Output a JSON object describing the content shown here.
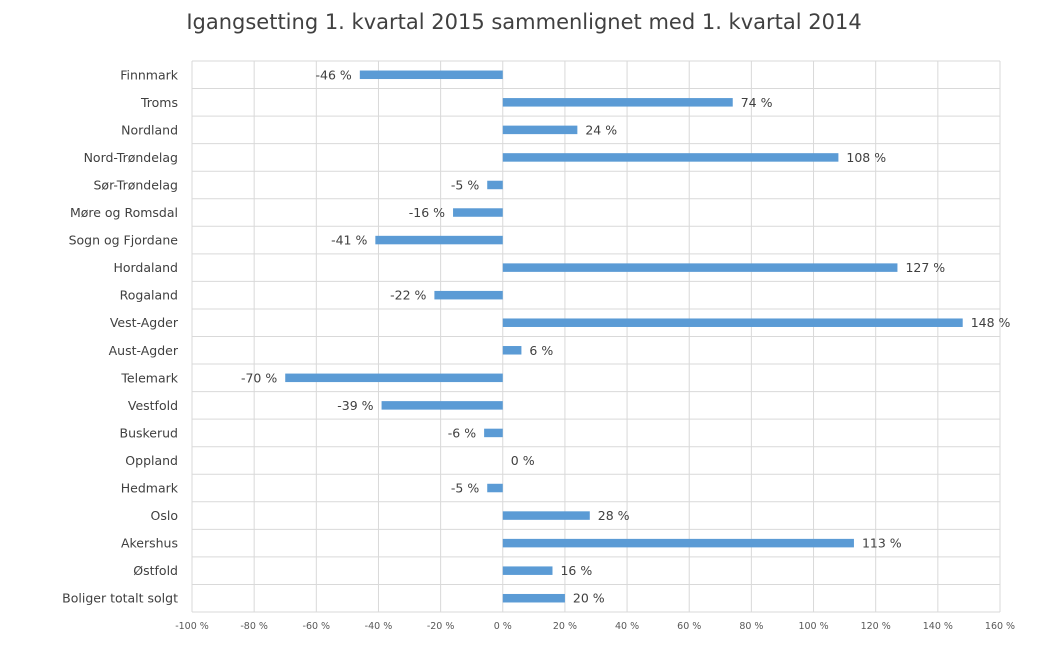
{
  "chart_data": {
    "type": "bar",
    "orientation": "horizontal",
    "title": "Igangsetting 1. kvartal 2015 sammenlignet med 1. kvartal 2014",
    "categories": [
      "Finnmark",
      "Troms",
      "Nordland",
      "Nord-Trøndelag",
      "Sør-Trøndelag",
      "Møre og Romsdal",
      "Sogn og Fjordane",
      "Hordaland",
      "Rogaland",
      "Vest-Agder",
      "Aust-Agder",
      "Telemark",
      "Vestfold",
      "Buskerud",
      "Oppland",
      "Hedmark",
      "Oslo",
      "Akershus",
      "Østfold",
      "Boliger totalt solgt"
    ],
    "values": [
      -46,
      74,
      24,
      108,
      -5,
      -16,
      -41,
      127,
      -22,
      148,
      6,
      -70,
      -39,
      -6,
      0,
      -5,
      28,
      113,
      16,
      20
    ],
    "data_labels": [
      "-46 %",
      "74 %",
      "24 %",
      "108 %",
      "-5 %",
      "-16 %",
      "-41 %",
      "127 %",
      "-22 %",
      "148 %",
      "6 %",
      "-70 %",
      "-39 %",
      "-6 %",
      "0 %",
      "-5 %",
      "28 %",
      "113 %",
      "16 %",
      "20 %"
    ],
    "xlim": [
      -100,
      160
    ],
    "x_ticks": [
      -100,
      -80,
      -60,
      -40,
      -20,
      0,
      20,
      40,
      60,
      80,
      100,
      120,
      140,
      160
    ],
    "x_tick_labels": [
      "-100 %",
      "-80 %",
      "-60 %",
      "-40 %",
      "-20 %",
      "0 %",
      "20 %",
      "40 %",
      "60 %",
      "80 %",
      "100 %",
      "120 %",
      "140 %",
      "160 %"
    ],
    "grid": true,
    "legend": "none",
    "bar_color": "#5b9bd5",
    "grid_color": "#d9d9d9"
  }
}
